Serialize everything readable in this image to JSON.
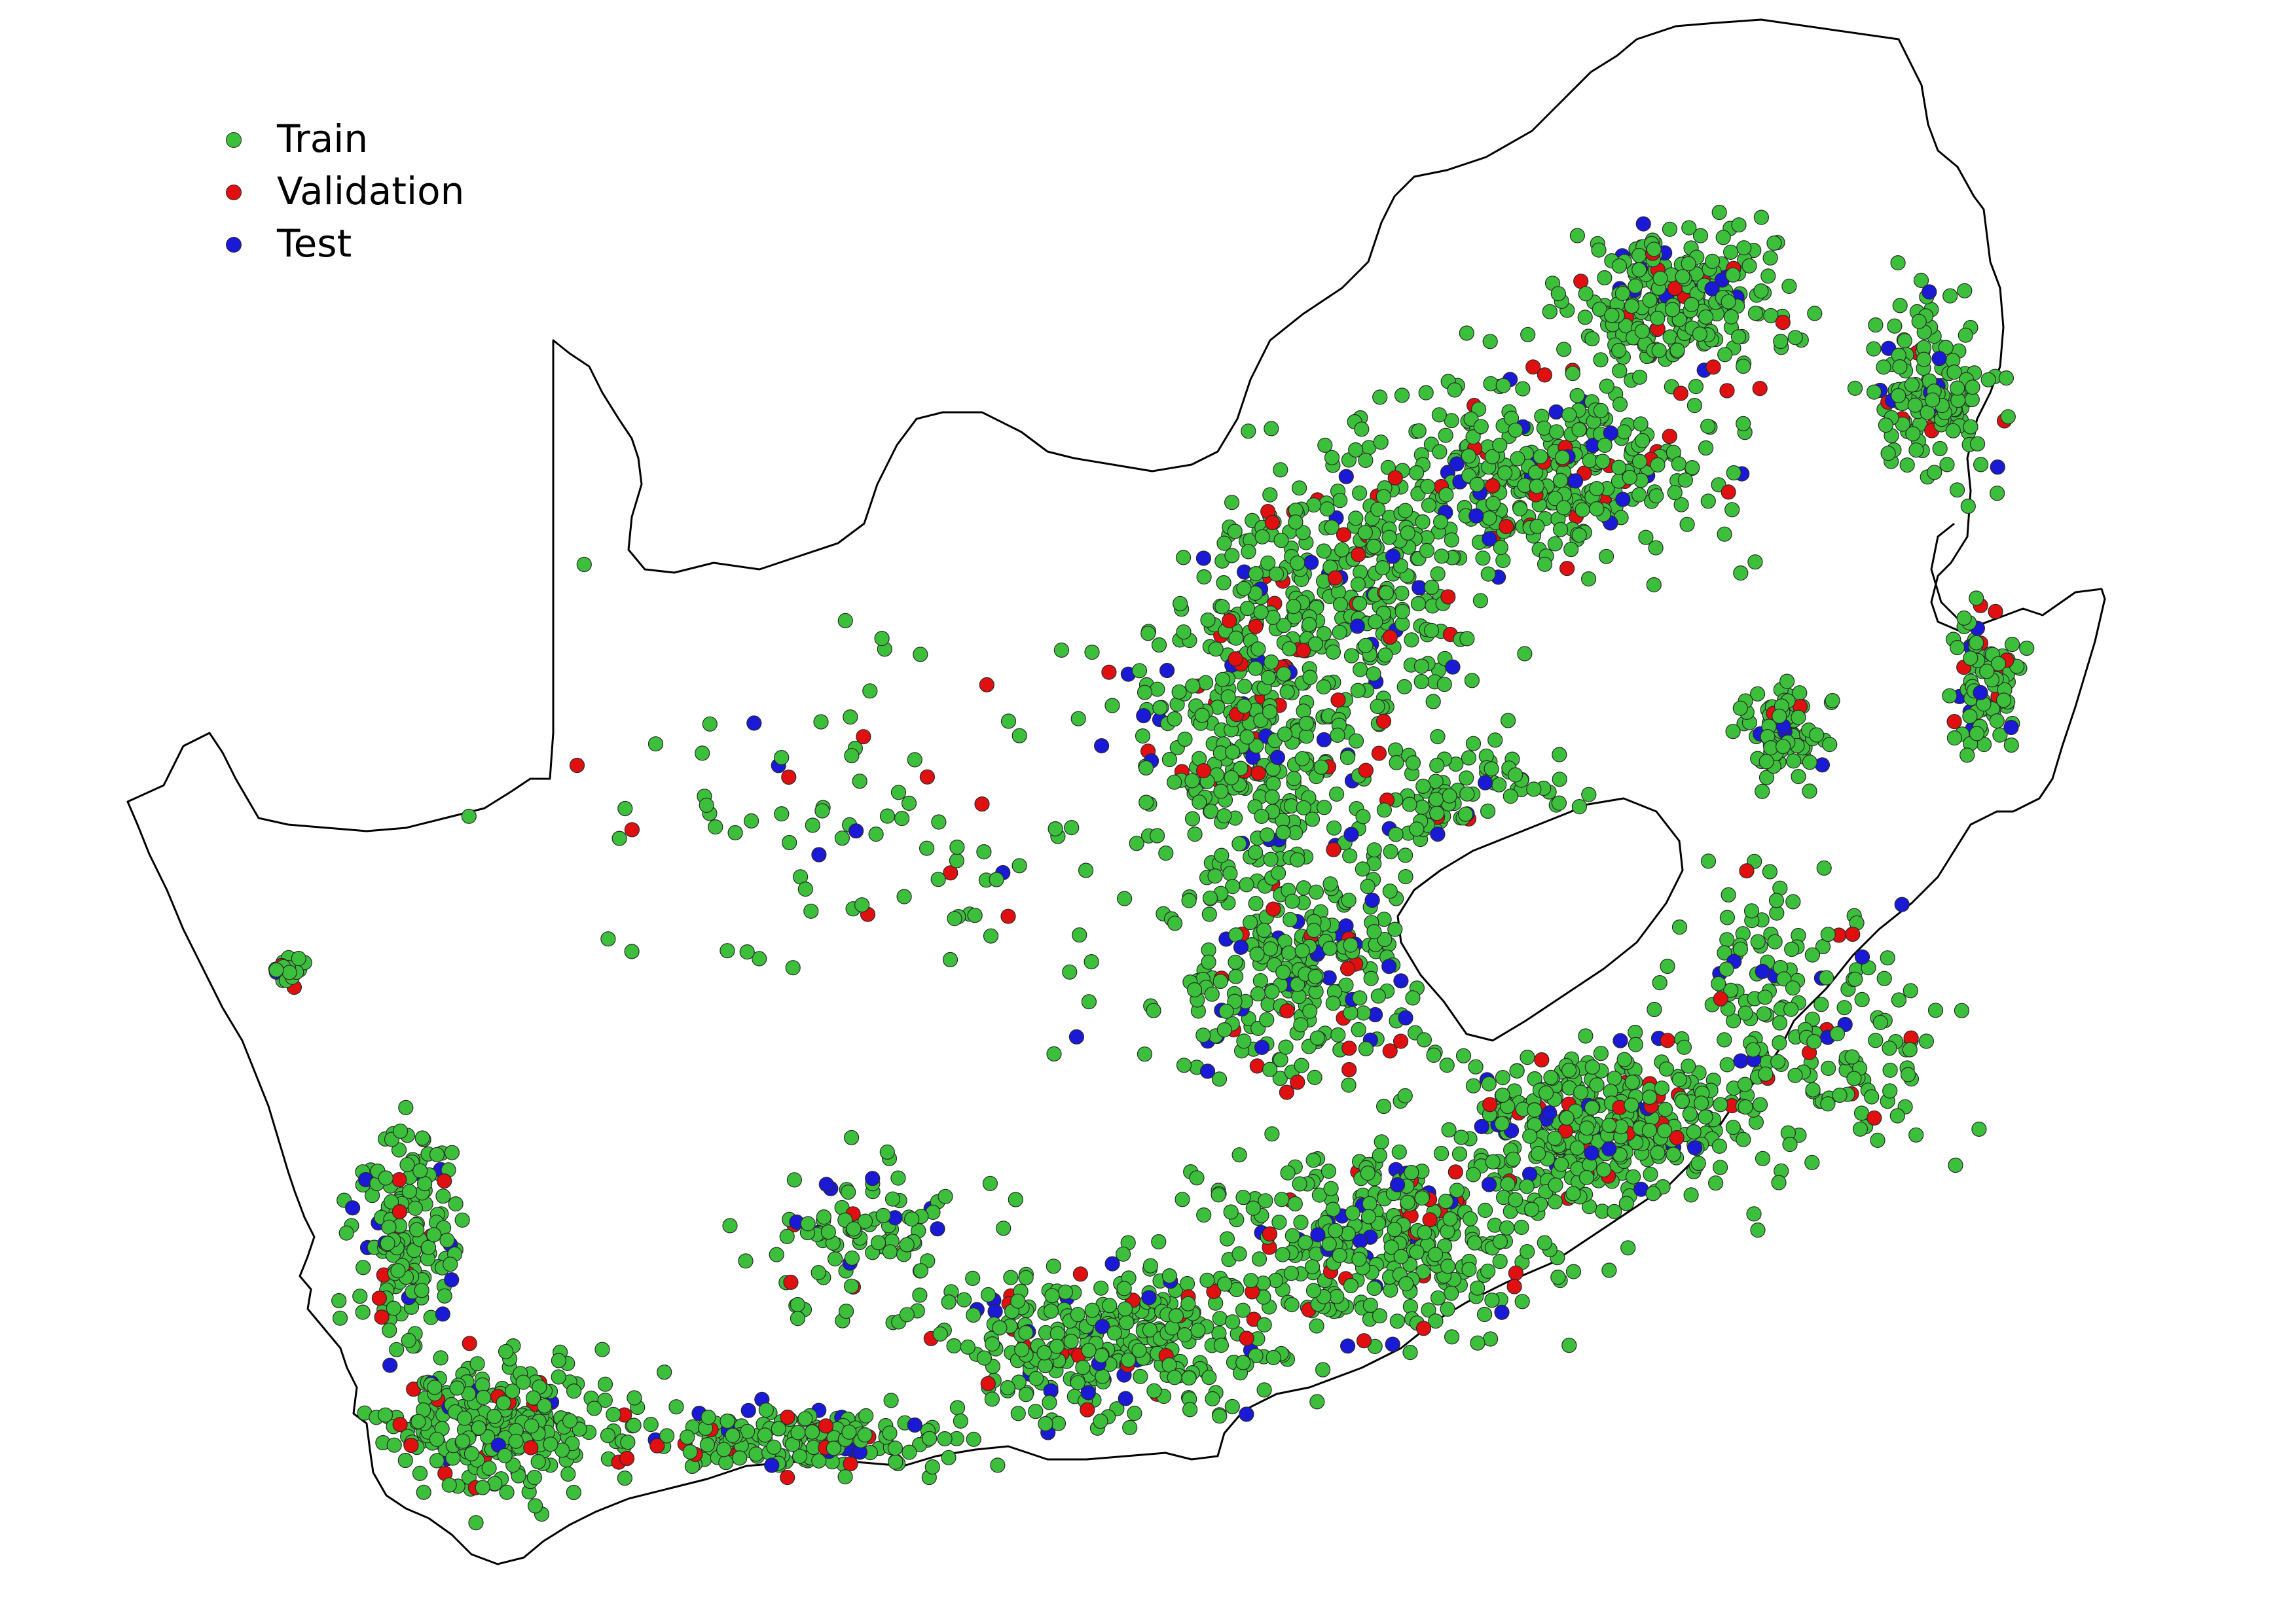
{
  "legend": [
    {
      "label": "Train",
      "color": "#3cc03c"
    },
    {
      "label": "Validation",
      "color": "#e01010"
    },
    {
      "label": "Test",
      "color": "#1a1ad6"
    }
  ],
  "map": {
    "outline_color": "#000000",
    "point_border_color": "#2d6b2d"
  }
}
